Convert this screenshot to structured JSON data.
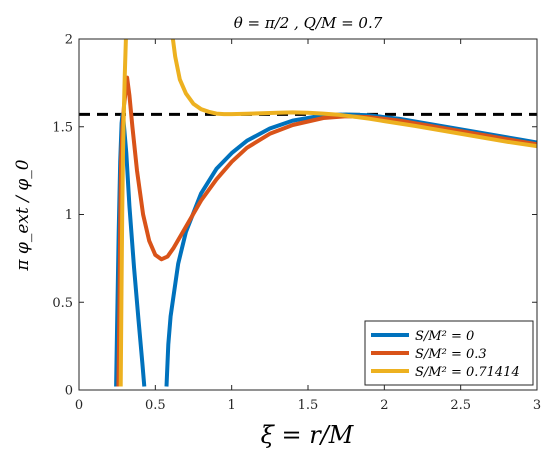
{
  "chart_data": {
    "type": "line",
    "title": "θ = π/2 ,    Q/M = 0.7",
    "xlabel": "ξ = r/M",
    "ylabel": "π φ_ext / φ_0",
    "xlim": [
      0,
      3
    ],
    "ylim": [
      0,
      2
    ],
    "x_ticks": [
      "0",
      "0.5",
      "1",
      "1.5",
      "2",
      "2.5",
      "3"
    ],
    "y_ticks": [
      "0",
      "0.5",
      "1",
      "1.5",
      "2"
    ],
    "grid": false,
    "legend_position": "bottom-right",
    "reference_line": {
      "y": 1.5708,
      "style": "dashed",
      "color": "#000000"
    },
    "series": [
      {
        "name": "S/M² = 0",
        "color": "#0072BD",
        "segments": [
          [
            [
              0.243,
              0.02
            ],
            [
              0.25,
              0.4
            ],
            [
              0.26,
              0.9
            ],
            [
              0.27,
              1.3
            ],
            [
              0.279,
              1.52
            ],
            [
              0.285,
              1.57
            ],
            [
              0.29,
              1.55
            ],
            [
              0.31,
              1.35
            ],
            [
              0.33,
              1.05
            ],
            [
              0.36,
              0.7
            ],
            [
              0.39,
              0.4
            ],
            [
              0.415,
              0.15
            ],
            [
              0.428,
              0.02
            ]
          ],
          [
            [
              0.573,
              0.02
            ],
            [
              0.585,
              0.26
            ],
            [
              0.6,
              0.42
            ],
            [
              0.65,
              0.72
            ],
            [
              0.7,
              0.9
            ],
            [
              0.8,
              1.12
            ],
            [
              0.9,
              1.26
            ],
            [
              1.0,
              1.35
            ],
            [
              1.1,
              1.42
            ],
            [
              1.25,
              1.49
            ],
            [
              1.4,
              1.535
            ],
            [
              1.6,
              1.565
            ],
            [
              1.75,
              1.57
            ],
            [
              1.9,
              1.565
            ],
            [
              2.1,
              1.545
            ],
            [
              2.3,
              1.515
            ],
            [
              2.5,
              1.485
            ],
            [
              2.7,
              1.455
            ],
            [
              2.9,
              1.425
            ],
            [
              3.0,
              1.41
            ]
          ]
        ]
      },
      {
        "name": "S/M² = 0.3",
        "color": "#D95319",
        "segments": [
          [
            [
              0.258,
              0.02
            ],
            [
              0.265,
              0.5
            ],
            [
              0.27,
              0.95
            ],
            [
              0.276,
              1.3
            ],
            [
              0.285,
              1.5
            ],
            [
              0.295,
              1.62
            ],
            [
              0.305,
              1.7
            ],
            [
              0.315,
              1.78
            ],
            [
              0.33,
              1.68
            ],
            [
              0.35,
              1.5
            ],
            [
              0.38,
              1.25
            ],
            [
              0.42,
              1.0
            ],
            [
              0.46,
              0.85
            ],
            [
              0.5,
              0.77
            ],
            [
              0.54,
              0.745
            ],
            [
              0.58,
              0.76
            ],
            [
              0.62,
              0.81
            ],
            [
              0.7,
              0.93
            ],
            [
              0.8,
              1.08
            ],
            [
              0.9,
              1.2
            ],
            [
              1.0,
              1.3
            ],
            [
              1.1,
              1.38
            ],
            [
              1.25,
              1.46
            ],
            [
              1.4,
              1.51
            ],
            [
              1.6,
              1.55
            ],
            [
              1.75,
              1.56
            ],
            [
              1.9,
              1.555
            ],
            [
              2.1,
              1.535
            ],
            [
              2.3,
              1.505
            ],
            [
              2.5,
              1.475
            ],
            [
              2.7,
              1.445
            ],
            [
              2.9,
              1.415
            ],
            [
              3.0,
              1.4
            ]
          ]
        ]
      },
      {
        "name": "S/M² = 0.71414",
        "color": "#EDB120",
        "segments": [
          [
            [
              0.273,
              0.02
            ],
            [
              0.278,
              0.5
            ],
            [
              0.283,
              1.0
            ],
            [
              0.288,
              1.35
            ],
            [
              0.293,
              1.55
            ],
            [
              0.3,
              1.8
            ],
            [
              0.307,
              2.0
            ]
          ],
          [
            [
              0.615,
              2.0
            ],
            [
              0.63,
              1.9
            ],
            [
              0.66,
              1.77
            ],
            [
              0.7,
              1.69
            ],
            [
              0.75,
              1.63
            ],
            [
              0.8,
              1.6
            ],
            [
              0.85,
              1.585
            ],
            [
              0.9,
              1.575
            ],
            [
              0.95,
              1.572
            ],
            [
              1.0,
              1.572
            ],
            [
              1.1,
              1.574
            ],
            [
              1.2,
              1.577
            ],
            [
              1.3,
              1.58
            ],
            [
              1.4,
              1.582
            ],
            [
              1.5,
              1.58
            ],
            [
              1.6,
              1.575
            ],
            [
              1.7,
              1.568
            ],
            [
              1.8,
              1.558
            ],
            [
              1.9,
              1.546
            ],
            [
              2.0,
              1.532
            ],
            [
              2.2,
              1.505
            ],
            [
              2.4,
              1.475
            ],
            [
              2.6,
              1.445
            ],
            [
              2.8,
              1.415
            ],
            [
              3.0,
              1.39
            ]
          ]
        ]
      }
    ]
  }
}
